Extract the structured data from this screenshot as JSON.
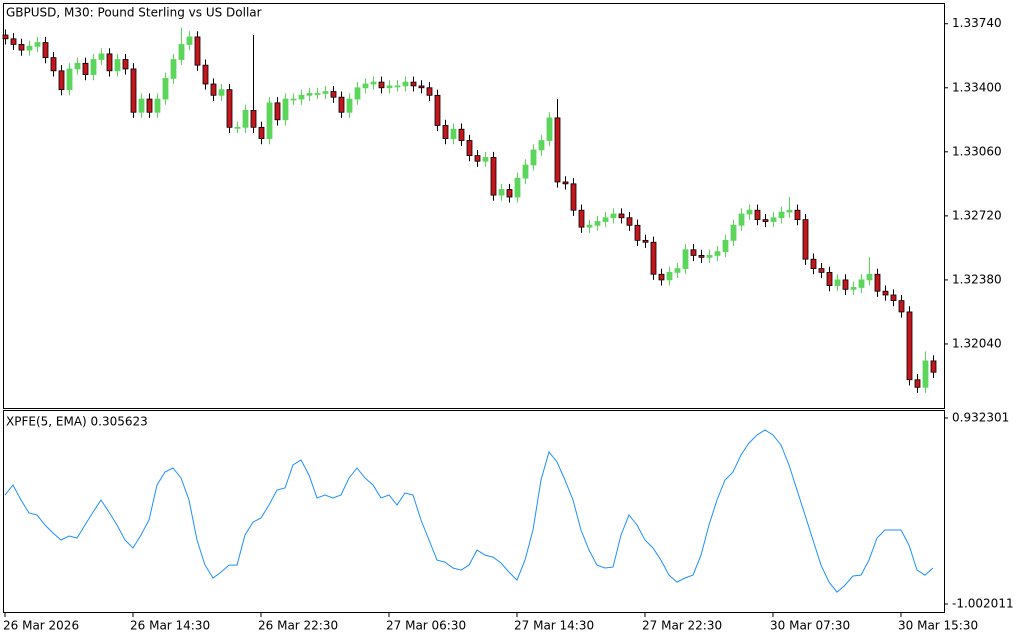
{
  "chart_data": [
    {
      "type": "candlestick",
      "title": "GBPUSD, M30:  Pound Sterling vs US Dollar",
      "bull_color": "#5bd65b",
      "bear_color": "#c4161c",
      "ylim": [
        1.317,
        1.3385
      ],
      "yticks": [
        {
          "value": 1.3374,
          "label": "1.33740"
        },
        {
          "value": 1.334,
          "label": "1.33400"
        },
        {
          "value": 1.3306,
          "label": "1.33060"
        },
        {
          "value": 1.3272,
          "label": "1.32720"
        },
        {
          "value": 1.3238,
          "label": "1.32380"
        },
        {
          "value": 1.3204,
          "label": "1.32040"
        }
      ],
      "open": [
        1.3368,
        1.3366,
        1.3363,
        1.336,
        1.3362,
        1.3364,
        1.3356,
        1.3349,
        1.3339,
        1.335,
        1.3353,
        1.3347,
        1.3355,
        1.3358,
        1.3349,
        1.3355,
        1.335,
        1.3327,
        1.3334,
        1.3327,
        1.3334,
        1.3345,
        1.3355,
        1.3363,
        1.3367,
        1.3352,
        1.3342,
        1.3336,
        1.3339,
        1.3319,
        1.3319,
        1.3328,
        1.3319,
        1.3313,
        1.3332,
        1.3323,
        1.3334,
        1.3334,
        1.3336,
        1.3337,
        1.3337,
        1.3338,
        1.3335,
        1.3327,
        1.3334,
        1.334,
        1.3342,
        1.3343,
        1.334,
        1.3341,
        1.3341,
        1.3343,
        1.3341,
        1.334,
        1.3336,
        1.332,
        1.3313,
        1.3318,
        1.3312,
        1.3304,
        1.3301,
        1.3303,
        1.3283,
        1.3286,
        1.3282,
        1.3292,
        1.3299,
        1.3307,
        1.3312,
        1.3324,
        1.329,
        1.3289,
        1.3275,
        1.3266,
        1.3267,
        1.3269,
        1.3271,
        1.3273,
        1.3271,
        1.3267,
        1.3259,
        1.3258,
        1.3241,
        1.3238,
        1.3242,
        1.3244,
        1.3254,
        1.3251,
        1.325,
        1.3251,
        1.3253,
        1.3259,
        1.3267,
        1.3273,
        1.3275,
        1.327,
        1.3269,
        1.3271,
        1.3274,
        1.3275,
        1.327,
        1.3249,
        1.3244,
        1.3242,
        1.3235,
        1.3238,
        1.3233,
        1.3234,
        1.3238,
        1.3241,
        1.3232,
        1.323,
        1.3227,
        1.3221,
        1.3185,
        1.3181,
        1.3195
      ],
      "high": [
        1.3371,
        1.3369,
        1.3366,
        1.3365,
        1.3367,
        1.3367,
        1.3359,
        1.3352,
        1.3353,
        1.3356,
        1.3356,
        1.3358,
        1.3361,
        1.3361,
        1.3358,
        1.3358,
        1.3353,
        1.3337,
        1.3337,
        1.3337,
        1.3348,
        1.3358,
        1.3372,
        1.337,
        1.337,
        1.3355,
        1.3345,
        1.3342,
        1.3342,
        1.3322,
        1.3331,
        1.3368,
        1.3322,
        1.3335,
        1.3335,
        1.3337,
        1.3337,
        1.3339,
        1.334,
        1.334,
        1.3341,
        1.3341,
        1.3338,
        1.3337,
        1.3343,
        1.3345,
        1.3346,
        1.3346,
        1.3344,
        1.3344,
        1.3346,
        1.3346,
        1.3344,
        1.3343,
        1.3339,
        1.3323,
        1.3321,
        1.3321,
        1.3315,
        1.3307,
        1.3306,
        1.3306,
        1.3289,
        1.3289,
        1.3295,
        1.3302,
        1.331,
        1.3315,
        1.3327,
        1.3334,
        1.3293,
        1.3292,
        1.3278,
        1.327,
        1.3272,
        1.3274,
        1.3276,
        1.3276,
        1.3274,
        1.327,
        1.3262,
        1.3261,
        1.3244,
        1.3245,
        1.3247,
        1.3257,
        1.3257,
        1.3254,
        1.3254,
        1.3256,
        1.3262,
        1.327,
        1.3276,
        1.3278,
        1.3278,
        1.3273,
        1.3274,
        1.3277,
        1.3282,
        1.3278,
        1.3273,
        1.3252,
        1.3247,
        1.3245,
        1.3241,
        1.3241,
        1.3237,
        1.3241,
        1.325,
        1.3244,
        1.3235,
        1.3233,
        1.323,
        1.3224,
        1.3188,
        1.32,
        1.3198
      ],
      "low": [
        1.3363,
        1.336,
        1.3357,
        1.3357,
        1.3359,
        1.3353,
        1.3346,
        1.3336,
        1.3336,
        1.3347,
        1.3344,
        1.3344,
        1.3352,
        1.3346,
        1.3346,
        1.3347,
        1.3324,
        1.3324,
        1.3324,
        1.3324,
        1.3331,
        1.3342,
        1.3352,
        1.336,
        1.3349,
        1.3339,
        1.3333,
        1.3333,
        1.3316,
        1.3316,
        1.3316,
        1.3316,
        1.331,
        1.331,
        1.332,
        1.332,
        1.3331,
        1.3331,
        1.3333,
        1.3334,
        1.3334,
        1.3332,
        1.3324,
        1.3324,
        1.3331,
        1.3337,
        1.3339,
        1.3337,
        1.3337,
        1.3338,
        1.3338,
        1.3338,
        1.3337,
        1.3333,
        1.3317,
        1.331,
        1.331,
        1.3309,
        1.3301,
        1.3298,
        1.3298,
        1.328,
        1.328,
        1.3279,
        1.3279,
        1.3289,
        1.3296,
        1.3304,
        1.3309,
        1.3287,
        1.3286,
        1.3272,
        1.3263,
        1.3263,
        1.3264,
        1.3266,
        1.3268,
        1.3268,
        1.3264,
        1.3256,
        1.3255,
        1.3238,
        1.3235,
        1.3235,
        1.3239,
        1.3241,
        1.3248,
        1.3247,
        1.3247,
        1.3248,
        1.325,
        1.3256,
        1.3264,
        1.327,
        1.3267,
        1.3266,
        1.3266,
        1.3268,
        1.3271,
        1.3267,
        1.3246,
        1.3241,
        1.3239,
        1.3232,
        1.3232,
        1.323,
        1.323,
        1.3231,
        1.3235,
        1.3229,
        1.3227,
        1.3224,
        1.3218,
        1.3182,
        1.3178,
        1.3178,
        1.3186
      ],
      "close": [
        1.3366,
        1.3363,
        1.336,
        1.3362,
        1.3364,
        1.3356,
        1.3349,
        1.3339,
        1.335,
        1.3353,
        1.3347,
        1.3355,
        1.3358,
        1.3349,
        1.3355,
        1.335,
        1.3327,
        1.3334,
        1.3327,
        1.3334,
        1.3345,
        1.3355,
        1.3363,
        1.3367,
        1.3352,
        1.3342,
        1.3336,
        1.3339,
        1.3319,
        1.3319,
        1.3328,
        1.3319,
        1.3313,
        1.3332,
        1.3323,
        1.3334,
        1.3334,
        1.3336,
        1.3337,
        1.3337,
        1.3338,
        1.3335,
        1.3327,
        1.3334,
        1.334,
        1.3342,
        1.3343,
        1.334,
        1.3341,
        1.3341,
        1.3343,
        1.3341,
        1.334,
        1.3336,
        1.332,
        1.3313,
        1.3318,
        1.3312,
        1.3304,
        1.3301,
        1.3303,
        1.3283,
        1.3286,
        1.3282,
        1.3292,
        1.3299,
        1.3307,
        1.3312,
        1.3324,
        1.329,
        1.3289,
        1.3275,
        1.3266,
        1.3267,
        1.3269,
        1.3271,
        1.3273,
        1.3271,
        1.3267,
        1.3259,
        1.3258,
        1.3241,
        1.3238,
        1.3242,
        1.3244,
        1.3254,
        1.3251,
        1.325,
        1.3251,
        1.3253,
        1.3259,
        1.3267,
        1.3273,
        1.3275,
        1.327,
        1.3269,
        1.3271,
        1.3274,
        1.3275,
        1.327,
        1.3249,
        1.3244,
        1.3242,
        1.3235,
        1.3238,
        1.3233,
        1.3234,
        1.3238,
        1.3241,
        1.3232,
        1.323,
        1.3227,
        1.3221,
        1.3185,
        1.3181,
        1.3195,
        1.3189
      ]
    },
    {
      "type": "line",
      "title": "XPFE(5, EMA) 0.305623",
      "color": "#1e90ff",
      "ylim": [
        -1.085,
        1.015
      ],
      "yticks": [
        0.932301,
        -1.002011
      ],
      "categories": [
        "26 Mar 2026",
        null,
        null,
        null,
        null,
        null,
        null,
        null,
        null,
        null,
        null,
        null,
        null,
        null,
        null,
        null,
        "26 Mar 14:30",
        null,
        null,
        null,
        null,
        null,
        null,
        null,
        null,
        null,
        null,
        null,
        null,
        null,
        null,
        null,
        "26 Mar 22:30",
        null,
        null,
        null,
        null,
        null,
        null,
        null,
        null,
        null,
        null,
        null,
        null,
        null,
        null,
        null,
        "27 Mar 06:30",
        null,
        null,
        null,
        null,
        null,
        null,
        null,
        null,
        null,
        null,
        null,
        null,
        null,
        null,
        null,
        "27 Mar 14:30",
        null,
        null,
        null,
        null,
        null,
        null,
        null,
        null,
        null,
        null,
        null,
        null,
        null,
        null,
        null,
        "27 Mar 22:30",
        null,
        null,
        null,
        null,
        null,
        null,
        null,
        null,
        null,
        null,
        null,
        null,
        null,
        null,
        null,
        "30 Mar 07:30",
        null,
        null,
        null,
        null,
        null,
        null,
        null,
        null,
        null,
        null,
        null,
        null,
        null,
        null,
        null,
        "30 Mar 15:30",
        null,
        null,
        null,
        null
      ],
      "values": [
        0.131,
        0.235,
        0.079,
        -0.056,
        -0.077,
        -0.181,
        -0.264,
        -0.337,
        -0.295,
        -0.316,
        -0.181,
        -0.046,
        0.079,
        -0.046,
        -0.181,
        -0.337,
        -0.42,
        -0.285,
        -0.129,
        0.235,
        0.37,
        0.412,
        0.308,
        0.079,
        -0.337,
        -0.597,
        -0.732,
        -0.67,
        -0.597,
        -0.597,
        -0.285,
        -0.15,
        -0.108,
        0.027,
        0.183,
        0.204,
        0.443,
        0.495,
        0.339,
        0.1,
        0.131,
        0.1,
        0.131,
        0.308,
        0.412,
        0.308,
        0.235,
        0.1,
        0.131,
        0.027,
        0.152,
        0.131,
        -0.129,
        -0.337,
        -0.545,
        -0.566,
        -0.628,
        -0.649,
        -0.597,
        -0.441,
        -0.493,
        -0.514,
        -0.576,
        -0.67,
        -0.753,
        -0.545,
        -0.233,
        0.287,
        0.578,
        0.474,
        0.287,
        0.079,
        -0.233,
        -0.441,
        -0.597,
        -0.628,
        -0.618,
        -0.285,
        -0.077,
        -0.181,
        -0.337,
        -0.42,
        -0.545,
        -0.701,
        -0.774,
        -0.732,
        -0.701,
        -0.493,
        -0.181,
        0.079,
        0.287,
        0.37,
        0.547,
        0.672,
        0.755,
        0.807,
        0.755,
        0.651,
        0.443,
        0.183,
        -0.077,
        -0.337,
        -0.597,
        -0.774,
        -0.878,
        -0.805,
        -0.711,
        -0.701,
        -0.545,
        -0.316,
        -0.233,
        -0.233,
        -0.233,
        -0.389,
        -0.649,
        -0.701,
        -0.628
      ]
    }
  ]
}
